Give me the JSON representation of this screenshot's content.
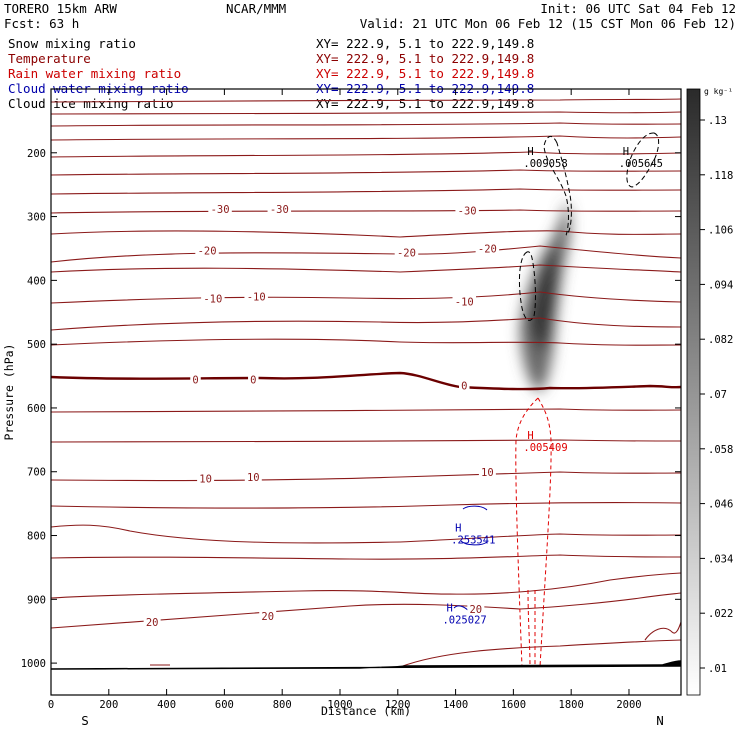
{
  "header": {
    "model": "TORERO  15km ARW",
    "center": "NCAR/MMM",
    "init": "Init: 06 UTC Sat 04 Feb 12",
    "fcst": "Fcst:   63 h",
    "valid": "Valid: 21 UTC Mon 06 Feb 12 (15 CST Mon 06 Feb 12)"
  },
  "legend": [
    {
      "label": "Snow mixing ratio",
      "xy": "XY= 222.9,  5.1 to 222.9,149.8",
      "color": "#000000"
    },
    {
      "label": "Temperature",
      "xy": "XY= 222.9,  5.1 to 222.9,149.8",
      "color": "#8b0000"
    },
    {
      "label": "Rain water mixing ratio",
      "xy": "XY= 222.9,  5.1 to 222.9,149.8",
      "color": "#cc0000"
    },
    {
      "label": "Cloud water mixing ratio",
      "xy": "XY= 222.9,  5.1 to 222.9,149.8",
      "color": "#0000aa"
    },
    {
      "label": "Cloud ice mixing ratio",
      "xy": "XY= 222.9,  5.1 to 222.9,149.8",
      "color": "#000000"
    }
  ],
  "chart_data": {
    "type": "cross-section contour",
    "xlabel": "Distance (km)",
    "ylabel": "Pressure (hPa)",
    "xlim": [
      0,
      2180
    ],
    "ylim": [
      1050,
      100
    ],
    "x_ticks": [
      0,
      200,
      400,
      600,
      800,
      1000,
      1200,
      1400,
      1600,
      1800,
      2000
    ],
    "y_ticks": [
      200,
      300,
      400,
      500,
      600,
      700,
      800,
      900,
      1000
    ],
    "left_end_label": "S",
    "right_end_label": "N",
    "temperature_labels": [
      {
        "text": "-30",
        "x": 585,
        "p": 290
      },
      {
        "text": "-30",
        "x": 790,
        "p": 290
      },
      {
        "text": "-30",
        "x": 1440,
        "p": 292
      },
      {
        "text": "-20",
        "x": 540,
        "p": 355
      },
      {
        "text": "-20",
        "x": 1230,
        "p": 358
      },
      {
        "text": "-20",
        "x": 1510,
        "p": 352
      },
      {
        "text": "-10",
        "x": 560,
        "p": 430
      },
      {
        "text": "-10",
        "x": 710,
        "p": 427
      },
      {
        "text": "-10",
        "x": 1430,
        "p": 435
      },
      {
        "text": "0",
        "x": 500,
        "p": 557
      },
      {
        "text": "0",
        "x": 700,
        "p": 557
      },
      {
        "text": "0",
        "x": 1430,
        "p": 566
      },
      {
        "text": "10",
        "x": 535,
        "p": 712
      },
      {
        "text": "10",
        "x": 700,
        "p": 710
      },
      {
        "text": "10",
        "x": 1510,
        "p": 702
      },
      {
        "text": "20",
        "x": 350,
        "p": 937
      },
      {
        "text": "20",
        "x": 750,
        "p": 928
      },
      {
        "text": "20",
        "x": 1470,
        "p": 917
      }
    ],
    "maxima_labels": [
      {
        "kind": "H",
        "value": ".009058",
        "x": 1690,
        "p": 210,
        "field": "cloud ice"
      },
      {
        "kind": "H",
        "value": ".005645",
        "x": 2020,
        "p": 210,
        "field": "cloud ice"
      },
      {
        "kind": "H",
        "value": ".005409",
        "x": 1690,
        "p": 655,
        "field": "rain water"
      },
      {
        "kind": "H",
        "value": ".253541",
        "x": 1440,
        "p": 800,
        "field": "cloud water"
      },
      {
        "kind": "H",
        "value": ".025027",
        "x": 1410,
        "p": 925,
        "field": "cloud water"
      }
    ],
    "snow_shading": {
      "colorbar_unit": "g kg⁻¹",
      "colorbar_levels": [
        ".01",
        ".022",
        ".034",
        ".046",
        ".058",
        ".07",
        ".082",
        ".094",
        ".106",
        ".118",
        ".13"
      ],
      "max_near": {
        "x": 1680,
        "p": 420
      }
    }
  }
}
